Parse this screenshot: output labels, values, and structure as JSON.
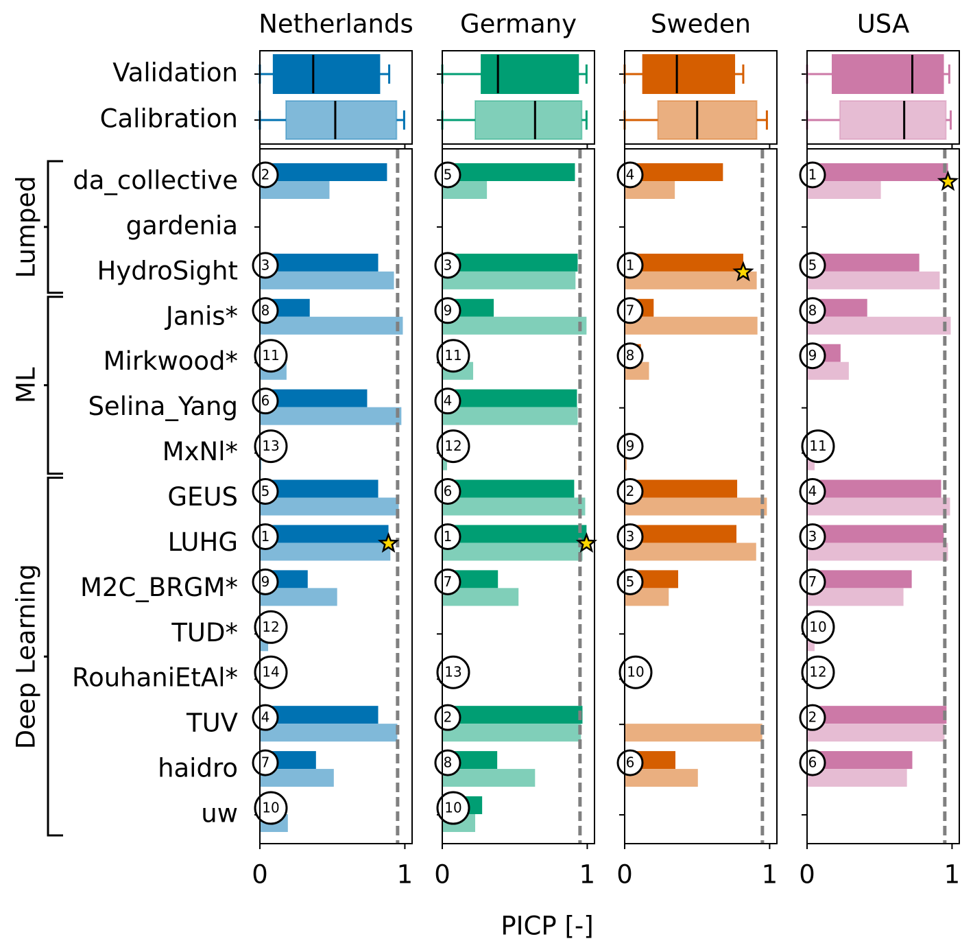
{
  "chart_data": {
    "type": "bar",
    "xlabel": "PICP [-]",
    "series_names": [
      "Validation",
      "Calibration"
    ],
    "reference_line": 0.95,
    "groups": [
      {
        "name": "Lumped",
        "categories": [
          "da_collective",
          "gardenia",
          "HydroSight"
        ]
      },
      {
        "name": "ML",
        "categories": [
          "Janis*",
          "Mirkwood*",
          "Selina_Yang",
          "MxNl*"
        ]
      },
      {
        "name": "Deep Learning",
        "categories": [
          "GEUS",
          "LUHG",
          "M2C_BRGM*",
          "TUD*",
          "RouhaniEtAl*",
          "TUV",
          "haidro",
          "uw"
        ]
      }
    ],
    "panels": [
      {
        "title": "Netherlands",
        "xlim": [
          0,
          1.05
        ],
        "xticks": [
          0,
          1
        ],
        "boxes": [
          {
            "min": 0,
            "q1": 0.094,
            "median": 0.368,
            "q3": 0.825,
            "max": 0.892
          },
          {
            "min": 0,
            "q1": 0.18,
            "median": 0.52,
            "q3": 0.943,
            "max": 0.995
          }
        ],
        "series": [
          {
            "color": "#0072b2",
            "values": [
              0.877,
              null,
              0.816,
              0.344,
              0,
              0.74,
              0,
              0.816,
              0.887,
              0.33,
              0,
              0,
              0.816,
              0.387,
              0
            ]
          },
          {
            "color": "#80b9d9",
            "values": [
              0.48,
              null,
              0.925,
              0.986,
              0.184,
              0.976,
              0.01,
              0.958,
              0.9,
              0.533,
              0.057,
              0,
              0.948,
              0.51,
              0.193
            ]
          }
        ],
        "ranks": [
          2,
          null,
          3,
          8,
          11,
          6,
          13,
          5,
          1,
          9,
          12,
          14,
          4,
          7,
          10
        ]
      },
      {
        "title": "Germany",
        "xlim": [
          0,
          1.05
        ],
        "xticks": [
          0,
          1
        ],
        "boxes": [
          {
            "min": 0,
            "q1": 0.27,
            "median": 0.384,
            "q3": 0.938,
            "max": 0.995
          },
          {
            "min": 0,
            "q1": 0.227,
            "median": 0.64,
            "q3": 0.962,
            "max": 0.995
          }
        ],
        "series": [
          {
            "color": "#009e73",
            "values": [
              0.915,
              null,
              0.934,
              0.355,
              0,
              0.929,
              0,
              0.91,
              0.995,
              0.384,
              null,
              0,
              0.967,
              0.379,
              0.275
            ]
          },
          {
            "color": "#80cfb9",
            "values": [
              0.308,
              null,
              0.919,
              0.995,
              0.213,
              0.934,
              0.033,
              0.986,
              0.967,
              0.526,
              null,
              0,
              0.957,
              0.64,
              0.227
            ]
          }
        ],
        "ranks": [
          5,
          null,
          3,
          9,
          11,
          4,
          12,
          6,
          1,
          7,
          null,
          13,
          2,
          8,
          10
        ]
      },
      {
        "title": "Sweden",
        "xlim": [
          0,
          1.05
        ],
        "xticks": [
          0,
          1
        ],
        "boxes": [
          {
            "min": 0,
            "q1": 0.126,
            "median": 0.36,
            "q3": 0.757,
            "max": 0.818
          },
          {
            "min": 0,
            "q1": 0.229,
            "median": 0.5,
            "q3": 0.911,
            "max": 0.981
          }
        ],
        "series": [
          {
            "color": "#d55e00",
            "values": [
              0.678,
              null,
              0.818,
              0.2,
              0.112,
              null,
              0,
              0.776,
              0.771,
              0.369,
              null,
              0,
              null,
              0.35,
              null
            ]
          },
          {
            "color": "#eaaf80",
            "values": [
              0.346,
              null,
              0.911,
              0.916,
              0.168,
              null,
              0.014,
              0.981,
              0.907,
              0.304,
              null,
              0,
              0.949,
              0.505,
              null
            ]
          }
        ],
        "ranks": [
          4,
          null,
          1,
          7,
          8,
          null,
          9,
          2,
          3,
          5,
          null,
          10,
          null,
          6,
          null
        ]
      },
      {
        "title": "USA",
        "xlim": [
          0,
          1.05
        ],
        "xticks": [
          0,
          1
        ],
        "boxes": [
          {
            "min": 0,
            "q1": 0.175,
            "median": 0.726,
            "q3": 0.939,
            "max": 0.981
          },
          {
            "min": 0,
            "q1": 0.226,
            "median": 0.67,
            "q3": 0.958,
            "max": 0.991
          }
        ],
        "series": [
          {
            "color": "#cc79a7",
            "values": [
              0.972,
              null,
              0.774,
              0.415,
              0.231,
              null,
              0,
              0.925,
              0.943,
              0.722,
              0,
              0,
              0.962,
              0.726,
              null
            ]
          },
          {
            "color": "#e6bcd3",
            "values": [
              0.509,
              null,
              0.915,
              0.991,
              0.288,
              null,
              0.052,
              0.986,
              0.972,
              0.665,
              0.052,
              0,
              0.948,
              0.689,
              null
            ]
          }
        ],
        "ranks": [
          1,
          null,
          5,
          8,
          9,
          null,
          11,
          4,
          3,
          7,
          10,
          12,
          2,
          6,
          null
        ]
      }
    ]
  }
}
